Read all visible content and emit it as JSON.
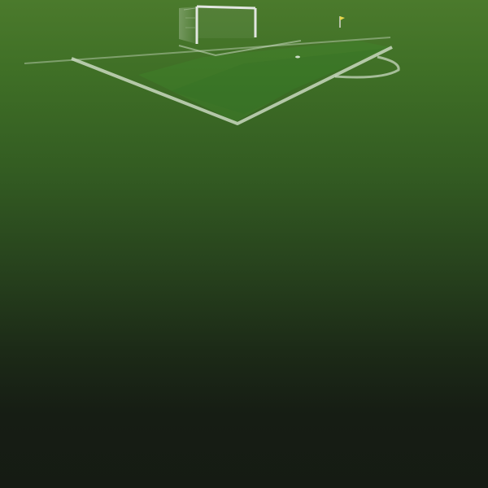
{
  "scene": {
    "type": "soccer-pitch-corner-view",
    "colors": {
      "grass_light": "#4b7a2c",
      "grass_dark": "#151b13",
      "stripe_light": "#3f8a2a",
      "line": "#c9d8c0",
      "goal_frame": "#e2e6e0",
      "corner_flag": "#e6d64a"
    },
    "elements": {
      "goal": {
        "icon": "goal-icon"
      },
      "corner_flag": {
        "icon": "corner-flag-icon"
      },
      "ball": {
        "icon": "ball-icon"
      }
    }
  }
}
